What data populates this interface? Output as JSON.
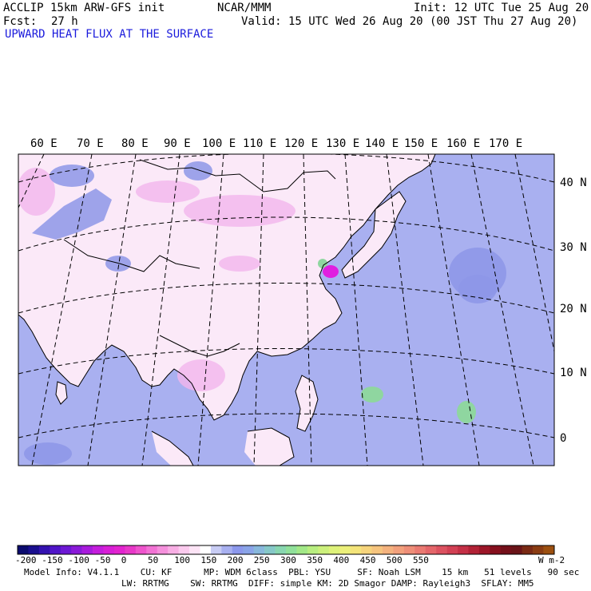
{
  "header": {
    "model": "ACCLIP 15km ARW-GFS init",
    "org": "NCAR/MMM",
    "init": "Init: 12 UTC Tue 25 Aug 20",
    "fcst_label": "Fcst:",
    "fcst_value": "27 h",
    "valid": "Valid: 15 UTC Wed 26 Aug 20 (00 JST Thu 27 Aug 20)",
    "field_title": "UPWARD HEAT FLUX AT THE SURFACE"
  },
  "map": {
    "lon_labels": [
      "60 E",
      "70 E",
      "80 E",
      "90 E",
      "100 E",
      "110 E",
      "120 E",
      "130 E",
      "140 E",
      "150 E",
      "160 E",
      "170 E"
    ],
    "lat_labels": [
      "40 N",
      "30 N",
      "20 N",
      "10 N",
      "0"
    ],
    "colors": {
      "ocean": "#a9b0f0",
      "land": "#fbe9f8",
      "land_high": "#f3b5ec",
      "cold_patch": "#8d97e8",
      "warm_patch": "#8fd6a0",
      "magenta_core": "#e01ee0",
      "gridline": "#000000"
    }
  },
  "colorbar": {
    "labels": [
      "-200",
      "-150",
      "-100",
      "-50",
      "0",
      "50",
      "100",
      "150",
      "200",
      "250",
      "300",
      "350",
      "400",
      "450",
      "500",
      "550"
    ],
    "units": "W m-2",
    "colors": [
      "#0b0b6e",
      "#1a0f8f",
      "#3412b0",
      "#5015c8",
      "#6d18d4",
      "#8a1ad8",
      "#a81bdc",
      "#c41ddc",
      "#d81fd6",
      "#e224cf",
      "#e838c8",
      "#ee54cc",
      "#f272d4",
      "#f590dc",
      "#f8aee4",
      "#fbcaee",
      "#fde4f6",
      "#ffffff",
      "#c8ccf4",
      "#a8b0f0",
      "#8c98ec",
      "#8aa4e8",
      "#88b8dc",
      "#86c8c8",
      "#88d6b0",
      "#90e09a",
      "#a2e888",
      "#b8ee80",
      "#ccf07c",
      "#def27a",
      "#ecf07a",
      "#f4e47a",
      "#f6d47c",
      "#f6c47e",
      "#f4b27e",
      "#f2a07c",
      "#ee8e78",
      "#ea7a72",
      "#e4666a",
      "#dc5260",
      "#d24054",
      "#c43046",
      "#b22236",
      "#9c1628",
      "#86101e",
      "#74101a",
      "#6a1418",
      "#7a2a14",
      "#8a3c12",
      "#9c5010"
    ]
  },
  "model_info": {
    "line1": "Model Info: V4.1.1    CU: KF      MP: WDM 6class  PBL: YSU     SF: Noah LSM    15 km   51 levels   90 sec",
    "line2": "LW: RRTMG    SW: RRTMG  DIFF: simple KM: 2D Smagor DAMP: Rayleigh3  SFLAY: MM5"
  }
}
